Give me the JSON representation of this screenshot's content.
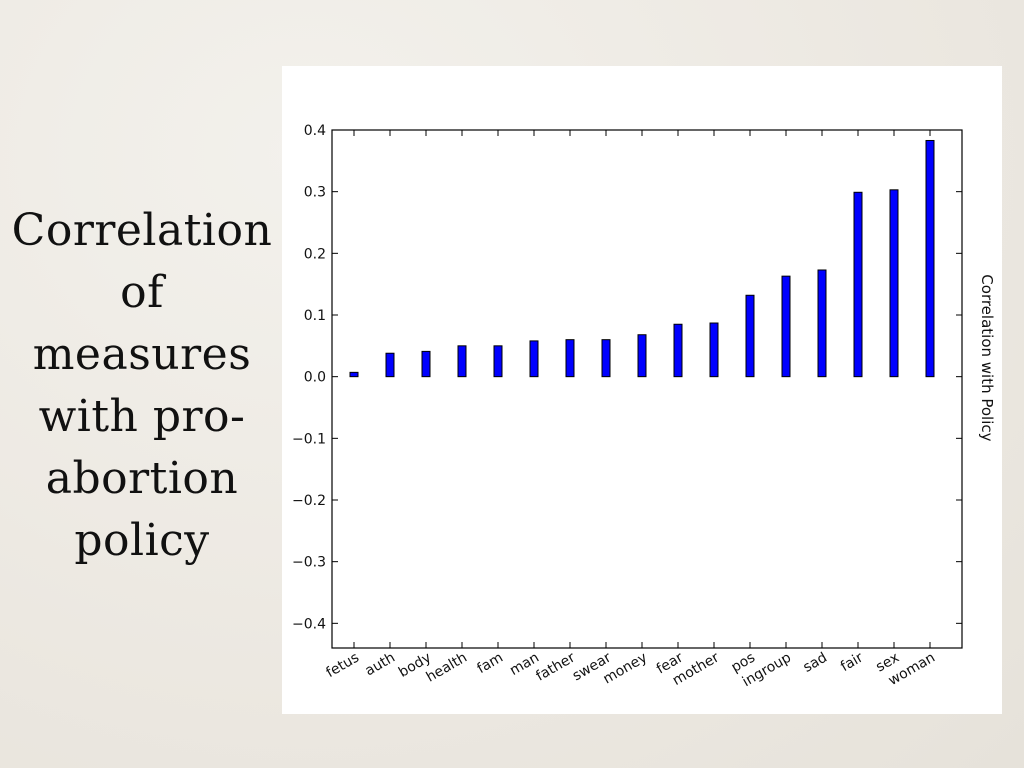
{
  "slide": {
    "title_lines": [
      "Correlation",
      "of",
      "measures",
      "with pro-",
      "abortion",
      "policy"
    ]
  },
  "chart_data": {
    "type": "bar",
    "categories": [
      "fetus",
      "auth",
      "body",
      "health",
      "fam",
      "man",
      "father",
      "swear",
      "money",
      "fear",
      "mother",
      "pos",
      "ingroup",
      "sad",
      "fair",
      "sex",
      "woman"
    ],
    "values": [
      0.007,
      0.038,
      0.041,
      0.05,
      0.05,
      0.058,
      0.06,
      0.06,
      0.068,
      0.085,
      0.087,
      0.132,
      0.163,
      0.173,
      0.299,
      0.303,
      0.383
    ],
    "title": "",
    "xlabel": "",
    "ylabel": "Correlation with Policy",
    "ylabel_position": "right",
    "ylim": [
      -0.44,
      0.4
    ],
    "yticks": [
      0.4,
      0.3,
      0.2,
      0.1,
      0.0,
      -0.1,
      -0.2,
      -0.3,
      -0.4
    ],
    "ytick_labels": [
      "0.4",
      "0.3",
      "0.2",
      "0.1",
      "0.0",
      "−0.1",
      "−0.2",
      "−0.3",
      "−0.4"
    ],
    "bar_color": "#0000ff",
    "grid": false
  }
}
